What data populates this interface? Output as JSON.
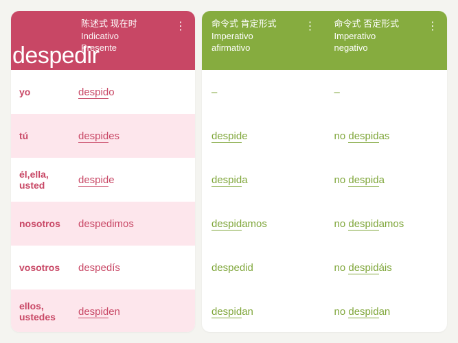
{
  "verb": "despedir",
  "colors": {
    "red": "#c84765",
    "pink": "#fde6ec",
    "green_header": "#86ac3f",
    "green_text": "#7fa63a",
    "background": "#f4f4f0",
    "panel": "#ffffff"
  },
  "left_header": {
    "cn": "陈述式 现在时",
    "es1": "Indicativo",
    "es2": "Presente"
  },
  "right_headers": {
    "affirmative": {
      "cn": "命令式 肯定形式",
      "es1": "Imperativo",
      "es2": "afirmativo"
    },
    "negative": {
      "cn": "命令式 否定形式",
      "es1": "Imperativo",
      "es2": "negativo"
    }
  },
  "pronouns": [
    {
      "label": "yo"
    },
    {
      "label": "tú"
    },
    {
      "label_line1": "él,ella,",
      "label_line2": "usted"
    },
    {
      "label": "nosotros"
    },
    {
      "label": "vosotros"
    },
    {
      "label_line1": "ellos,",
      "label_line2": "ustedes"
    }
  ],
  "indicative_present": [
    {
      "stem": "despid",
      "suffix": "o",
      "underline_stem": true
    },
    {
      "stem": "despid",
      "suffix": "es",
      "underline_stem": true
    },
    {
      "stem": "despid",
      "suffix": "e",
      "underline_stem": true
    },
    {
      "full": "despedimos",
      "underline_stem": false
    },
    {
      "full": "despedís",
      "underline_stem": false
    },
    {
      "stem": "despid",
      "suffix": "en",
      "underline_stem": true
    }
  ],
  "imperative_affirmative": [
    {
      "dash": true,
      "text": "–"
    },
    {
      "stem": "despid",
      "suffix": "e",
      "underline_stem": true
    },
    {
      "stem": "despid",
      "suffix": "a",
      "underline_stem": true
    },
    {
      "stem": "despid",
      "suffix": "amos",
      "underline_stem": true
    },
    {
      "full": "despedid",
      "underline_stem": false
    },
    {
      "stem": "despid",
      "suffix": "an",
      "underline_stem": true
    }
  ],
  "imperative_negative": [
    {
      "dash": true,
      "text": "–"
    },
    {
      "prefix": "no ",
      "stem": "despid",
      "suffix": "as",
      "underline_stem": true
    },
    {
      "prefix": "no ",
      "stem": "despid",
      "suffix": "a",
      "underline_stem": true
    },
    {
      "prefix": "no ",
      "stem": "despid",
      "suffix": "amos",
      "underline_stem": true
    },
    {
      "prefix": "no ",
      "stem": "despid",
      "suffix": "áis",
      "underline_stem": true
    },
    {
      "prefix": "no ",
      "stem": "despid",
      "suffix": "an",
      "underline_stem": true
    }
  ]
}
